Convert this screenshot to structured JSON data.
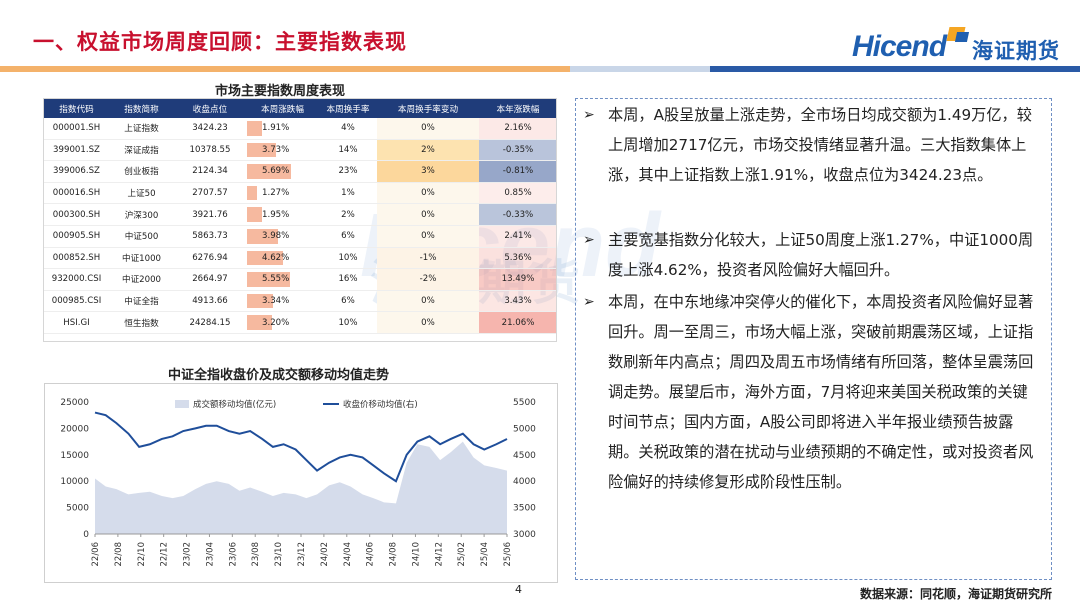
{
  "header": {
    "title": "一、权益市场周度回顾：主要指数表现"
  },
  "logo": {
    "en": "Hicend",
    "cn": "海证期货"
  },
  "watermark": {
    "en": "Hicend",
    "cn": "海证期货"
  },
  "table": {
    "title": "市场主要指数周度表现",
    "columns": [
      "指数代码",
      "指数简称",
      "收盘点位",
      "本周涨跌幅",
      "本周换手率",
      "本周换手率变动",
      "本年涨跌幅"
    ],
    "rows": [
      {
        "code": "000001.SH",
        "name": "上证指数",
        "close": "3424.23",
        "week_chg": "1.91%",
        "turnover": "4%",
        "turnover_chg": "0%",
        "ytd": "2.16%"
      },
      {
        "code": "399001.SZ",
        "name": "深证成指",
        "close": "10378.55",
        "week_chg": "3.73%",
        "turnover": "14%",
        "turnover_chg": "2%",
        "ytd": "-0.35%"
      },
      {
        "code": "399006.SZ",
        "name": "创业板指",
        "close": "2124.34",
        "week_chg": "5.69%",
        "turnover": "23%",
        "turnover_chg": "3%",
        "ytd": "-0.81%"
      },
      {
        "code": "000016.SH",
        "name": "上证50",
        "close": "2707.57",
        "week_chg": "1.27%",
        "turnover": "1%",
        "turnover_chg": "0%",
        "ytd": "0.85%"
      },
      {
        "code": "000300.SH",
        "name": "沪深300",
        "close": "3921.76",
        "week_chg": "1.95%",
        "turnover": "2%",
        "turnover_chg": "0%",
        "ytd": "-0.33%"
      },
      {
        "code": "000905.SH",
        "name": "中证500",
        "close": "5863.73",
        "week_chg": "3.98%",
        "turnover": "6%",
        "turnover_chg": "0%",
        "ytd": "2.41%"
      },
      {
        "code": "000852.SH",
        "name": "中证1000",
        "close": "6276.94",
        "week_chg": "4.62%",
        "turnover": "10%",
        "turnover_chg": "-1%",
        "ytd": "5.36%"
      },
      {
        "code": "932000.CSI",
        "name": "中证2000",
        "close": "2664.97",
        "week_chg": "5.55%",
        "turnover": "16%",
        "turnover_chg": "-2%",
        "ytd": "13.49%"
      },
      {
        "code": "000985.CSI",
        "name": "中证全指",
        "close": "4913.66",
        "week_chg": "3.34%",
        "turnover": "6%",
        "turnover_chg": "0%",
        "ytd": "3.43%"
      },
      {
        "code": "HSI.GI",
        "name": "恒生指数",
        "close": "24284.15",
        "week_chg": "3.20%",
        "turnover": "10%",
        "turnover_chg": "0%",
        "ytd": "21.06%"
      }
    ],
    "week_chg_values": [
      1.91,
      3.73,
      5.69,
      1.27,
      1.95,
      3.98,
      4.62,
      5.55,
      3.34,
      3.2
    ],
    "turnover_chg_values": [
      0,
      2,
      3,
      0,
      0,
      0,
      -1,
      -2,
      0,
      0
    ],
    "ytd_values": [
      2.16,
      -0.35,
      -0.81,
      0.85,
      -0.33,
      2.41,
      5.36,
      13.49,
      3.43,
      21.06
    ],
    "colors": {
      "header_bg": "#1f3c7a",
      "week_bar": "#f6b99f",
      "turnover_pos": "#fde3b0",
      "ytd_pos": "#fbd9d6",
      "ytd_neg": "#c9d3e6"
    }
  },
  "chart_data": {
    "type": "area",
    "title": "中证全指收盘价及成交额移动均值走势",
    "x_ticks": [
      "22/06",
      "22/08",
      "22/10",
      "22/12",
      "23/02",
      "23/04",
      "23/06",
      "23/08",
      "23/10",
      "23/12",
      "24/02",
      "24/04",
      "24/06",
      "24/08",
      "24/10",
      "24/12",
      "25/02",
      "25/04",
      "25/06"
    ],
    "y_left": {
      "ticks": [
        0,
        5000,
        10000,
        15000,
        20000,
        25000
      ],
      "range": [
        0,
        25000
      ]
    },
    "y_right": {
      "ticks": [
        3000,
        3500,
        4000,
        4500,
        5000,
        5500
      ],
      "range": [
        3000,
        5500
      ]
    },
    "legend": [
      "成交额移动均值(亿元)",
      "收盘价移动均值(右)"
    ],
    "legend_position": "top",
    "colors": {
      "volume": "#d5dceb",
      "price": "#1f4e9a"
    },
    "series": [
      {
        "name": "成交额移动均值(亿元)",
        "axis": "left",
        "type": "area",
        "x": [
          2022.42,
          2022.5,
          2022.58,
          2022.67,
          2022.75,
          2022.83,
          2022.92,
          2023.0,
          2023.08,
          2023.17,
          2023.25,
          2023.33,
          2023.42,
          2023.5,
          2023.58,
          2023.67,
          2023.75,
          2023.83,
          2023.92,
          2024.0,
          2024.08,
          2024.17,
          2024.25,
          2024.33,
          2024.42,
          2024.5,
          2024.58,
          2024.67,
          2024.75,
          2024.83,
          2024.92,
          2025.0,
          2025.08,
          2025.17,
          2025.25,
          2025.33,
          2025.42,
          2025.5
        ],
        "values": [
          10500,
          9000,
          8500,
          7500,
          7800,
          8000,
          7200,
          6800,
          7200,
          8500,
          9500,
          10000,
          9500,
          8200,
          8800,
          8000,
          7200,
          7800,
          7500,
          6800,
          7500,
          9200,
          9800,
          9000,
          7500,
          6800,
          6000,
          5800,
          13500,
          17000,
          16500,
          14000,
          15500,
          17500,
          14500,
          13000,
          12500,
          12000
        ]
      },
      {
        "name": "收盘价移动均值(右)",
        "axis": "right",
        "type": "line",
        "x": [
          2022.42,
          2022.5,
          2022.58,
          2022.67,
          2022.75,
          2022.83,
          2022.92,
          2023.0,
          2023.08,
          2023.17,
          2023.25,
          2023.33,
          2023.42,
          2023.5,
          2023.58,
          2023.67,
          2023.75,
          2023.83,
          2023.92,
          2024.0,
          2024.08,
          2024.17,
          2024.25,
          2024.33,
          2024.42,
          2024.5,
          2024.58,
          2024.67,
          2024.75,
          2024.83,
          2024.92,
          2025.0,
          2025.08,
          2025.17,
          2025.25,
          2025.33,
          2025.42,
          2025.5
        ],
        "values": [
          5300,
          5250,
          5100,
          4900,
          4650,
          4700,
          4800,
          4850,
          4950,
          5000,
          5050,
          5050,
          4950,
          4900,
          4950,
          4800,
          4650,
          4700,
          4600,
          4400,
          4200,
          4350,
          4450,
          4500,
          4450,
          4300,
          4150,
          4000,
          4500,
          4750,
          4850,
          4700,
          4800,
          4900,
          4700,
          4600,
          4700,
          4800
        ]
      }
    ]
  },
  "commentary": [
    {
      "bullet": "➢",
      "text": "本周，A股呈放量上涨走势，全市场日均成交额为1.49万亿，较上周增加2717亿元，市场交投情绪显著升温。三大指数集体上涨，其中上证指数上涨1.91%，收盘点位为3424.23点。"
    },
    {
      "bullet": "➢",
      "text": "主要宽基指数分化较大，上证50周度上涨1.27%，中证1000周度上涨4.62%，投资者风险偏好大幅回升。"
    },
    {
      "bullet": "➢",
      "text": "本周，在中东地缘冲突停火的催化下，本周投资者风险偏好显著回升。周一至周三，市场大幅上涨，突破前期震荡区域，上证指数刷新年内高点；周四及周五市场情绪有所回落，整体呈震荡回调走势。展望后市，海外方面，7月将迎来美国关税政策的关键时间节点；国内方面，A股公司即将进入半年报业绩预告披露期。关税政策的潜在扰动与业绩预期的不确定性，或对投资者风险偏好的持续修复形成阶段性压制。"
    }
  ],
  "footer": {
    "page": "4",
    "source": "数据来源：同花顺，海证期货研究所"
  }
}
